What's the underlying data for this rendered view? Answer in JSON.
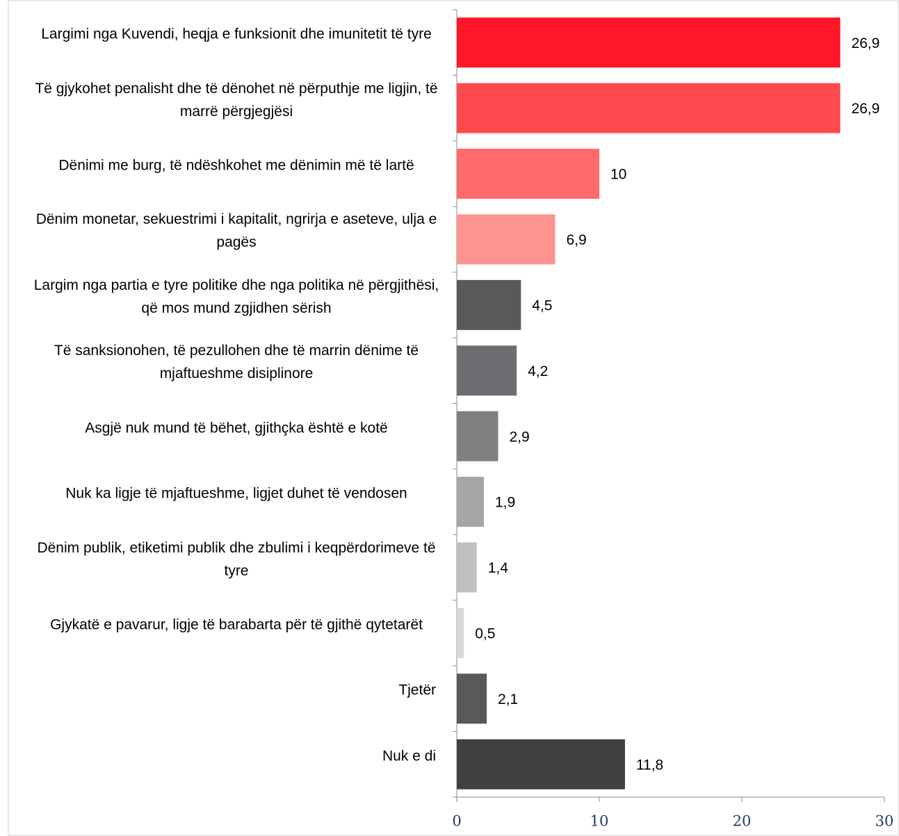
{
  "chart_data": {
    "type": "bar",
    "orientation": "horizontal",
    "categories": [
      "Largimi nga Kuvendi, heqja e funksionit dhe imunitetit të tyre",
      "Të gjykohet penalisht dhe të dënohet në përputhje me ligjin, të marrë përgjegjësi",
      "Dënimi me burg, të ndëshkohet me dënimin më të lartë",
      "Dënim monetar, sekuestrimi i kapitalit, ngrirja e aseteve, ulja e pagës",
      "Largim nga partia e tyre politike dhe nga politika në përgjithësi, që mos mund zgjidhen sërish",
      "Të sanksionohen, të pezullohen dhe të marrin dënime të mjaftueshme disiplinore",
      "Asgjë nuk mund të bëhet, gjithçka është e kotë",
      "Nuk ka ligje të mjaftueshme, ligjet duhet të vendosen",
      "Dënim publik, etiketimi publik dhe zbulimi i keqpërdorimeve të tyre",
      "Gjykatë e pavarur, ligje të barabarta për të gjithë qytetarët",
      "Tjetër",
      "Nuk e di"
    ],
    "values": [
      26.9,
      26.9,
      10,
      6.9,
      4.5,
      4.2,
      2.9,
      1.9,
      1.4,
      0.5,
      2.1,
      11.8
    ],
    "value_labels": [
      "26,9",
      "26,9",
      "10",
      "6,9",
      "4,5",
      "4,2",
      "2,9",
      "1,9",
      "1,4",
      "0,5",
      "2,1",
      "11,8"
    ],
    "colors": [
      "#ff1628",
      "#ff4a4f",
      "#ff6a6a",
      "#fc9490",
      "#58595b",
      "#6d6e71",
      "#808080",
      "#a6a6a6",
      "#bfbfbf",
      "#d9d9d9",
      "#58595b",
      "#404040"
    ],
    "xlim": [
      0,
      30
    ],
    "xticks": [
      0,
      10,
      20,
      30
    ]
  }
}
